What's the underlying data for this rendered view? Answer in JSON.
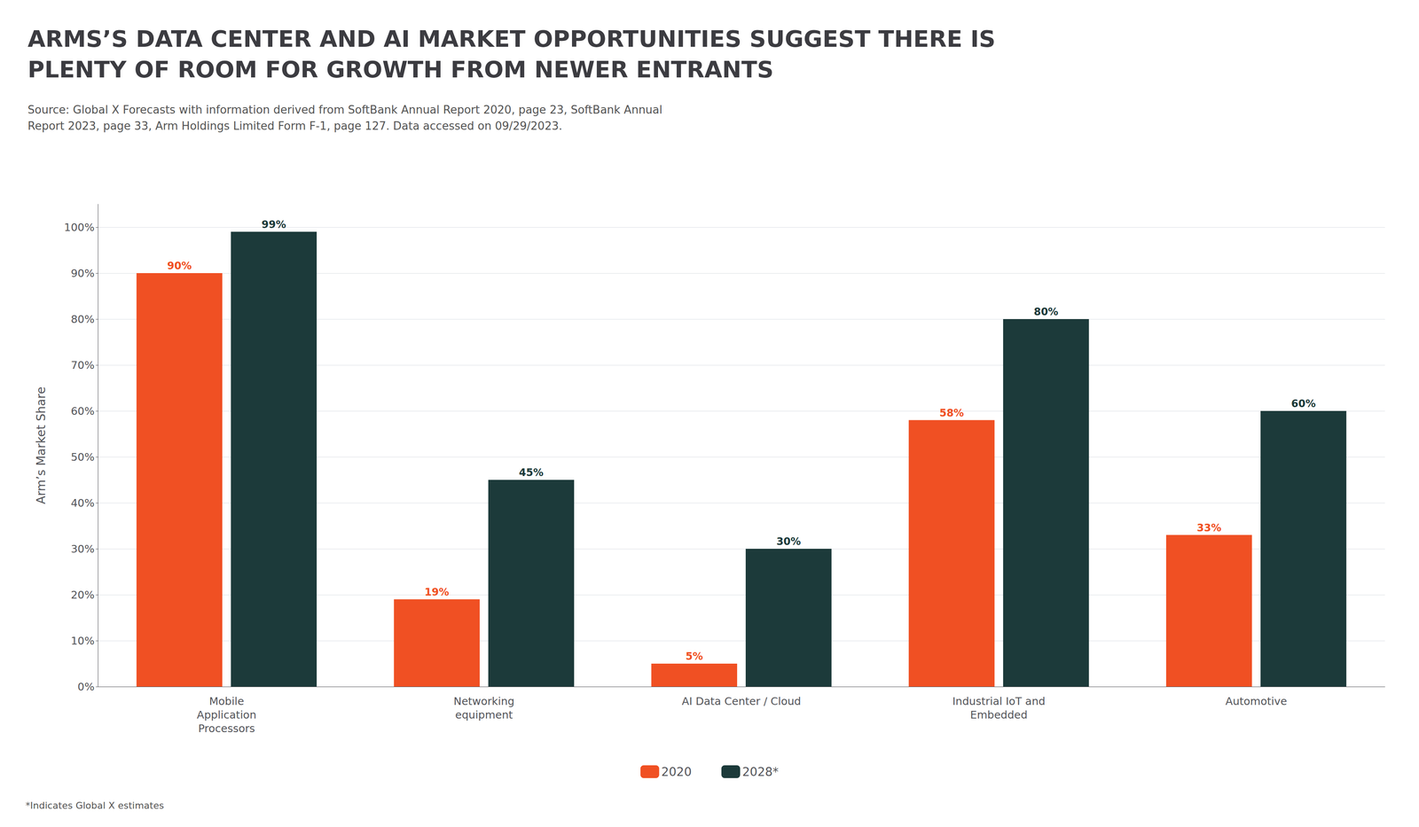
{
  "chart_data": {
    "type": "bar",
    "title": "ARMS’S DATA CENTER AND AI MARKET OPPORTUNITIES SUGGEST THERE IS\nPLENTY OF ROOM FOR GROWTH FROM NEWER ENTRANTS",
    "subtitle": "Source: Global X Forecasts with information derived from SoftBank Annual Report 2020, page 23, SoftBank Annual\nReport 2023, page 33, Arm Holdings Limited Form F-1, page 127. Data accessed on 09/29/2023.",
    "annotations": [
      "*Indicates Global X estimates"
    ],
    "ylabel": "Arm’s Market Share",
    "categories": [
      "Mobile\nApplication\nProcessors",
      "Networking\nequipment",
      "AI Data Center / Cloud",
      "Industrial IoT and\nEmbedded",
      "Automotive"
    ],
    "series": [
      {
        "name": "2020",
        "color": "#F05023",
        "values": [
          90,
          19,
          5,
          58,
          33
        ],
        "value_labels": [
          "90%",
          "19%",
          "5%",
          "58%",
          "33%"
        ]
      },
      {
        "name": "2028*",
        "color": "#1C3A3A",
        "values": [
          99,
          45,
          30,
          80,
          60
        ],
        "value_labels": [
          "99%",
          "45%",
          "30%",
          "80%",
          "60%"
        ]
      }
    ],
    "ylim": [
      0,
      105
    ],
    "yticks": [
      {
        "value": 0,
        "label": "0%"
      },
      {
        "value": 10,
        "label": "10%"
      },
      {
        "value": 20,
        "label": "20%"
      },
      {
        "value": 30,
        "label": "30%"
      },
      {
        "value": 40,
        "label": "40%"
      },
      {
        "value": 50,
        "label": "50%"
      },
      {
        "value": 60,
        "label": "60%"
      },
      {
        "value": 70,
        "label": "70%"
      },
      {
        "value": 80,
        "label": "80%"
      },
      {
        "value": 90,
        "label": "90%"
      },
      {
        "value": 100,
        "label": "100%"
      }
    ],
    "grid": true,
    "legend": "bottom",
    "data_labels": true
  }
}
